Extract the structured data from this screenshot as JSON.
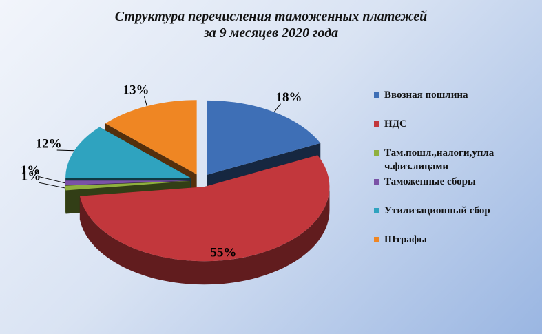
{
  "chart_data": {
    "type": "pie",
    "title": [
      "Структура перечисления таможенных платежей",
      "за 9 месяцев 2020 года"
    ],
    "categories": [
      "Ввозная пошлина",
      "НДС",
      "Там.пошл.,налоги,уплач.физ.лицами",
      "Таможенные сборы",
      "Утилизационный  сбор",
      "Штрафы"
    ],
    "values": [
      18,
      55,
      1,
      1,
      12,
      13
    ],
    "value_labels": [
      "18%",
      "55%",
      "1%",
      "1%",
      "12%",
      "13%"
    ],
    "colors": [
      "#3e6fb6",
      "#c2373c",
      "#8fb03e",
      "#7a52a6",
      "#2fa3bf",
      "#ef8623"
    ],
    "legend": "right"
  }
}
